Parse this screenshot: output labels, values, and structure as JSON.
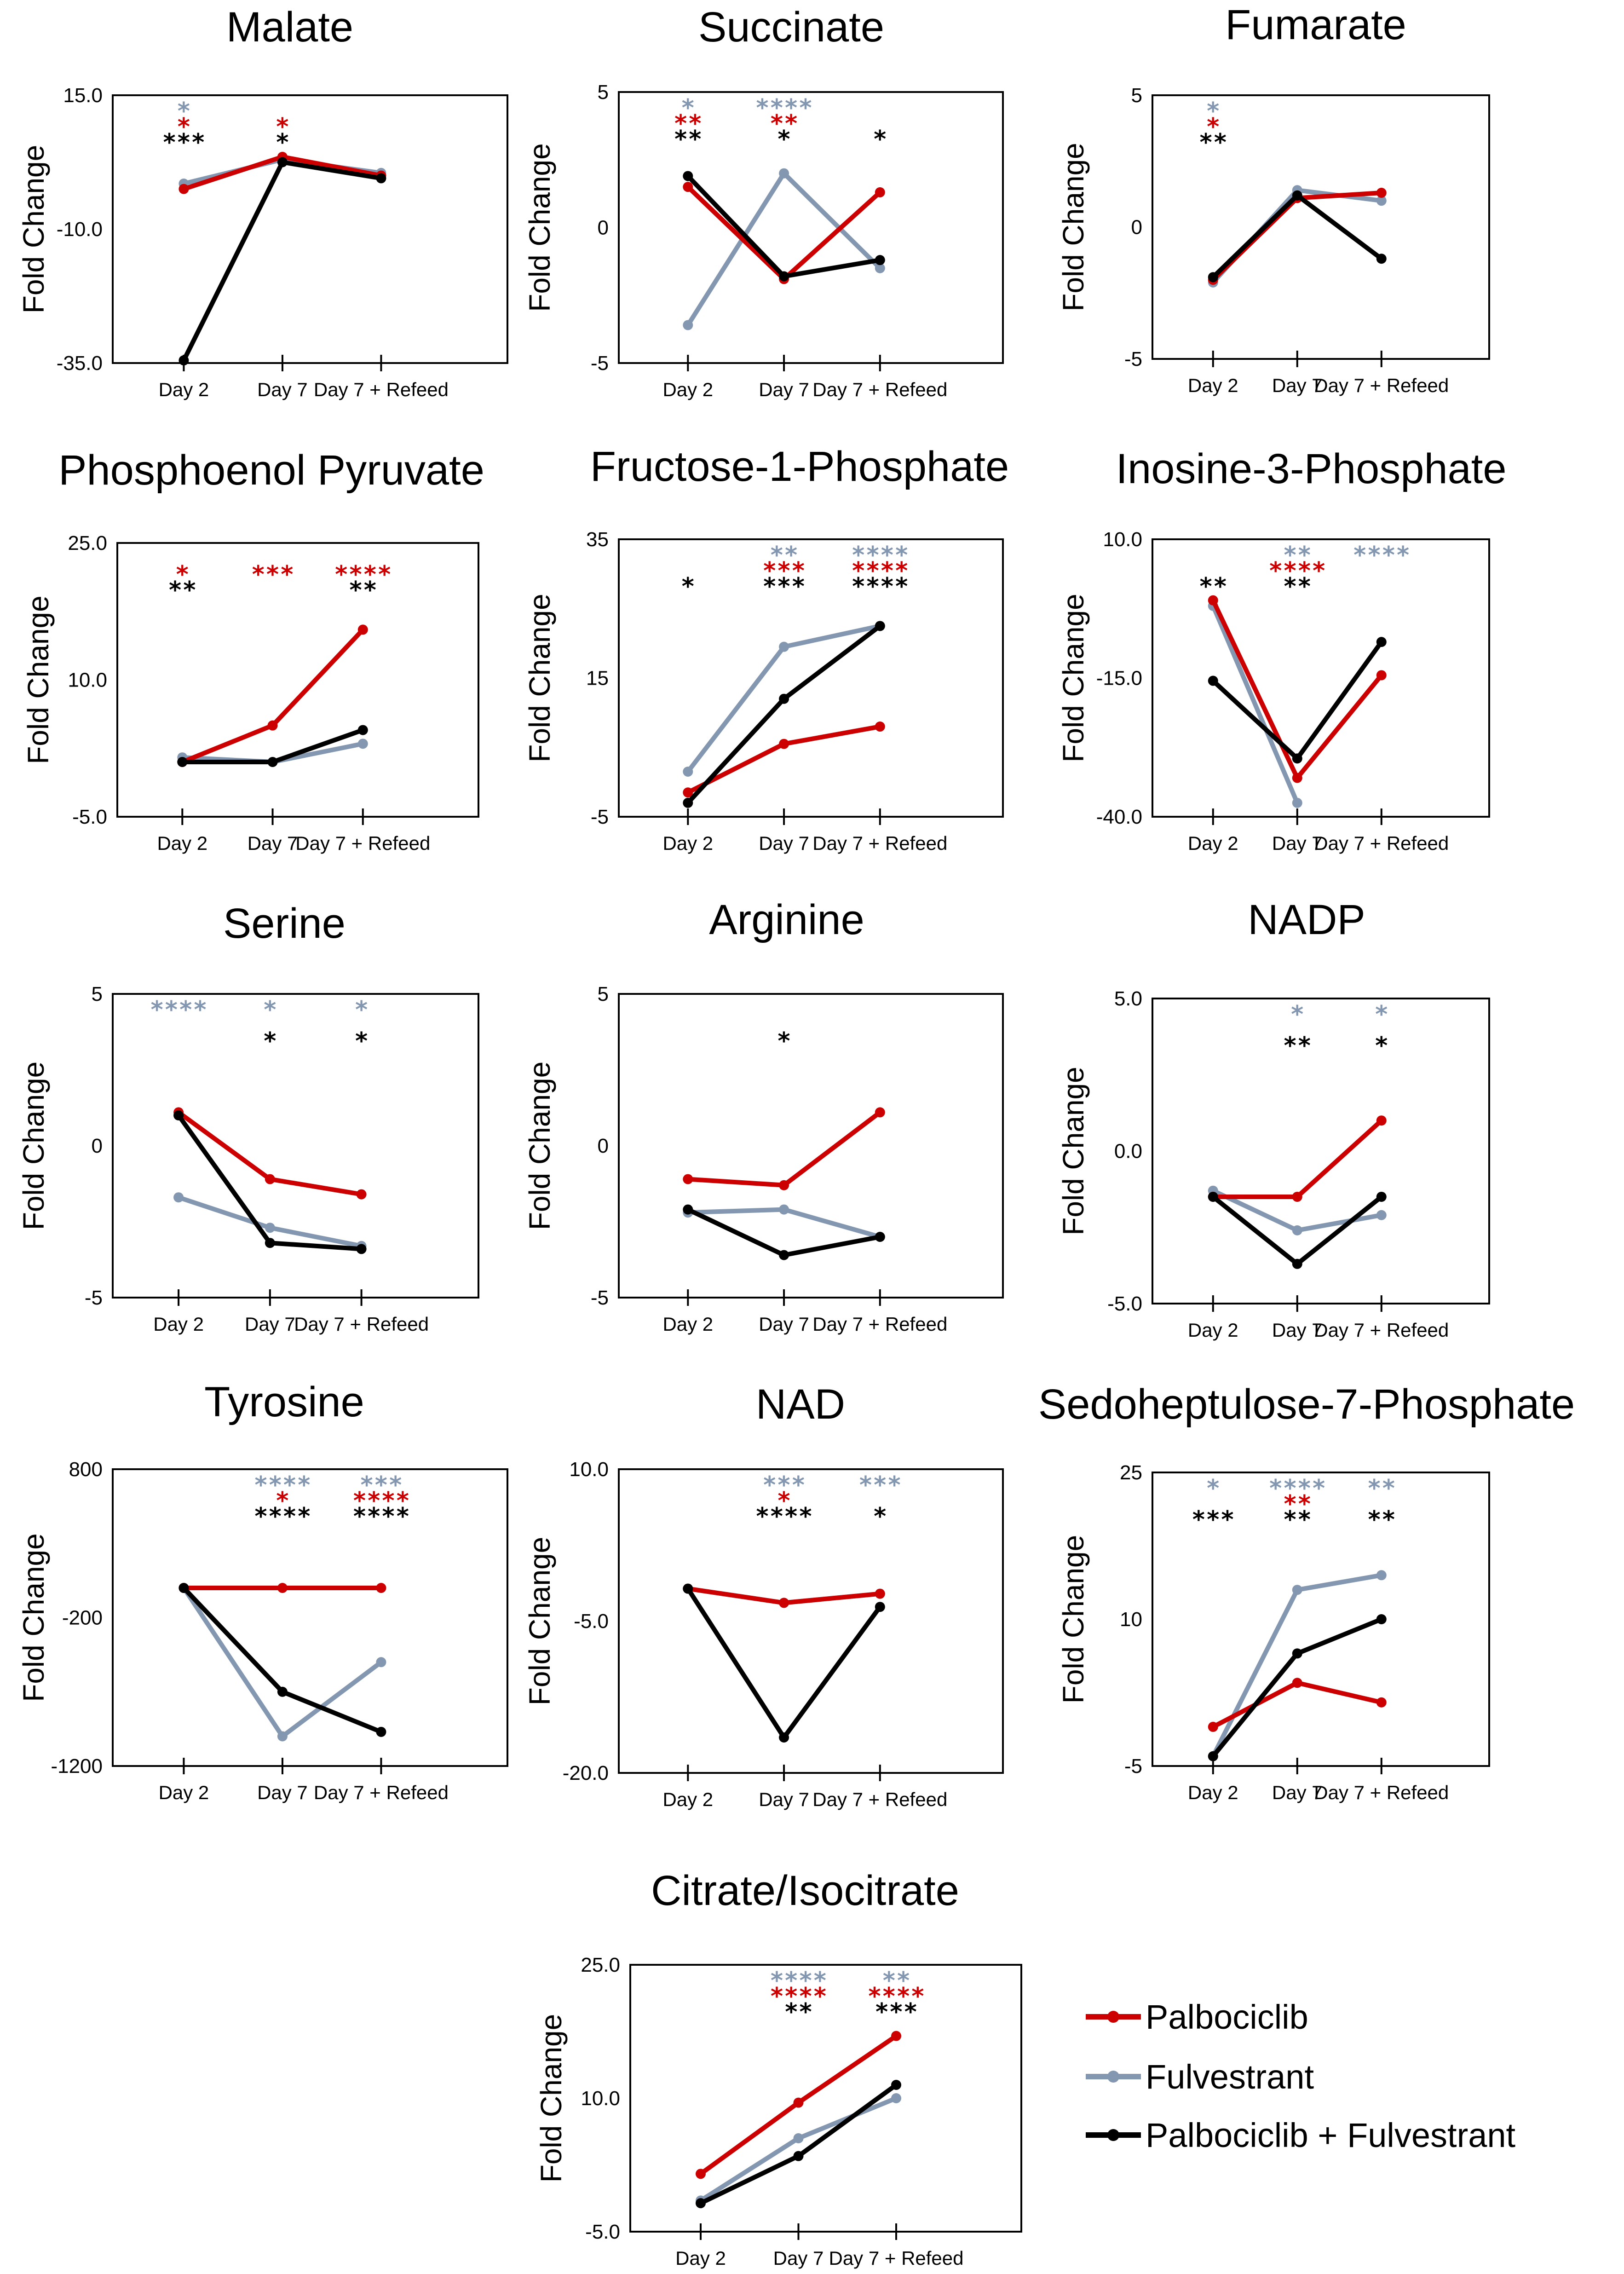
{
  "figure": {
    "categories": [
      "Day 2",
      "Day 7",
      "Day 7 + Refeed"
    ],
    "ylabel": "Fold Change",
    "colors": {
      "Palbociclib": "#cc0000",
      "Fulvestrant": "#8497b0",
      "Palbociclib + Fulvestrant": "#000000"
    },
    "legend": [
      {
        "label": "Palbociclib",
        "color": "#cc0000"
      },
      {
        "label": "Fulvestrant",
        "color": "#8497b0"
      },
      {
        "label": "Palbociclib + Fulvestrant",
        "color": "#000000"
      }
    ]
  },
  "chart_data": [
    {
      "type": "line",
      "title": "Malate",
      "xlabel": "",
      "ylabel": "Fold Change",
      "ylim": [
        -35,
        15
      ],
      "yticks": [
        "15.0",
        "-10.0",
        "-35.0"
      ],
      "categories": [
        "Day 2",
        "Day 7",
        "Day 7 + Refeed"
      ],
      "series": [
        {
          "name": "Palbociclib",
          "values": [
            -2.5,
            3.5,
            0
          ]
        },
        {
          "name": "Fulvestrant",
          "values": [
            -1.5,
            3,
            0.5
          ]
        },
        {
          "name": "Palbociclib + Fulvestrant",
          "values": [
            -34.5,
            2.5,
            -0.5
          ]
        }
      ],
      "significance": [
        {
          "Fulvestrant": "*",
          "Palbociclib": "*",
          "Palbociclib + Fulvestrant": "***"
        },
        {
          "Fulvestrant": "",
          "Palbociclib": "*",
          "Palbociclib + Fulvestrant": "*"
        },
        {
          "Fulvestrant": "",
          "Palbociclib": "",
          "Palbociclib + Fulvestrant": ""
        }
      ]
    },
    {
      "type": "line",
      "title": "Succinate",
      "xlabel": "",
      "ylabel": "Fold Change",
      "ylim": [
        -5,
        5
      ],
      "yticks": [
        "5",
        "0",
        "-5"
      ],
      "categories": [
        "Day 2",
        "Day 7",
        "Day 7 + Refeed"
      ],
      "series": [
        {
          "name": "Palbociclib",
          "values": [
            1.5,
            -1.9,
            1.3
          ]
        },
        {
          "name": "Fulvestrant",
          "values": [
            -3.6,
            2,
            -1.5
          ]
        },
        {
          "name": "Palbociclib + Fulvestrant",
          "values": [
            1.9,
            -1.8,
            -1.2
          ]
        }
      ],
      "significance": [
        {
          "Fulvestrant": "*",
          "Palbociclib": "**",
          "Palbociclib + Fulvestrant": "**"
        },
        {
          "Fulvestrant": "****",
          "Palbociclib": "**",
          "Palbociclib + Fulvestrant": "*"
        },
        {
          "Fulvestrant": "",
          "Palbociclib": "",
          "Palbociclib + Fulvestrant": "*"
        }
      ]
    },
    {
      "type": "line",
      "title": "Fumarate",
      "xlabel": "",
      "ylabel": "Fold Change",
      "ylim": [
        -5,
        5
      ],
      "yticks": [
        "5",
        "0",
        "-5"
      ],
      "categories": [
        "Day 2",
        "Day 7",
        "Day 7 + Refeed"
      ],
      "series": [
        {
          "name": "Palbociclib",
          "values": [
            -2,
            1.1,
            1.3
          ]
        },
        {
          "name": "Fulvestrant",
          "values": [
            -2.1,
            1.4,
            1
          ]
        },
        {
          "name": "Palbociclib + Fulvestrant",
          "values": [
            -1.9,
            1.2,
            -1.2
          ]
        }
      ],
      "significance": [
        {
          "Fulvestrant": "*",
          "Palbociclib": "*",
          "Palbociclib + Fulvestrant": "**"
        },
        {
          "Fulvestrant": "",
          "Palbociclib": "",
          "Palbociclib + Fulvestrant": ""
        },
        {
          "Fulvestrant": "",
          "Palbociclib": "",
          "Palbociclib + Fulvestrant": ""
        }
      ]
    },
    {
      "type": "line",
      "title": "Phosphoenol Pyruvate",
      "xlabel": "",
      "ylabel": "Fold Change",
      "ylim": [
        -5,
        25
      ],
      "yticks": [
        "25.0",
        "10.0",
        "-5.0"
      ],
      "categories": [
        "Day 2",
        "Day 7",
        "Day 7 + Refeed"
      ],
      "series": [
        {
          "name": "Palbociclib",
          "values": [
            1,
            5,
            15.5
          ]
        },
        {
          "name": "Fulvestrant",
          "values": [
            1.5,
            1,
            3
          ]
        },
        {
          "name": "Palbociclib + Fulvestrant",
          "values": [
            1,
            1,
            4.5
          ]
        }
      ],
      "significance": [
        {
          "Fulvestrant": "",
          "Palbociclib": "*",
          "Palbociclib + Fulvestrant": "**"
        },
        {
          "Fulvestrant": "",
          "Palbociclib": "***",
          "Palbociclib + Fulvestrant": ""
        },
        {
          "Fulvestrant": "",
          "Palbociclib": "****",
          "Palbociclib + Fulvestrant": "**"
        }
      ]
    },
    {
      "type": "line",
      "title": "Fructose-1-Phosphate",
      "xlabel": "",
      "ylabel": "Fold Change",
      "ylim": [
        -5,
        35
      ],
      "yticks": [
        "35",
        "15",
        "-5"
      ],
      "categories": [
        "Day 2",
        "Day 7",
        "Day 7 + Refeed"
      ],
      "series": [
        {
          "name": "Palbociclib",
          "values": [
            -1.5,
            5.5,
            8
          ]
        },
        {
          "name": "Fulvestrant",
          "values": [
            1.5,
            19.5,
            22.5
          ]
        },
        {
          "name": "Palbociclib + Fulvestrant",
          "values": [
            -3,
            12,
            22.5
          ]
        }
      ],
      "significance": [
        {
          "Fulvestrant": "",
          "Palbociclib": "",
          "Palbociclib + Fulvestrant": "*"
        },
        {
          "Fulvestrant": "**",
          "Palbociclib": "***",
          "Palbociclib + Fulvestrant": "***"
        },
        {
          "Fulvestrant": "****",
          "Palbociclib": "****",
          "Palbociclib + Fulvestrant": "****"
        }
      ]
    },
    {
      "type": "line",
      "title": "Inosine-3-Phosphate",
      "xlabel": "",
      "ylabel": "Fold Change",
      "ylim": [
        -40,
        10
      ],
      "yticks": [
        "10.0",
        "-15.0",
        "-40.0"
      ],
      "categories": [
        "Day 2",
        "Day 7",
        "Day 7 + Refeed"
      ],
      "series": [
        {
          "name": "Palbociclib",
          "values": [
            -1,
            -33,
            -14.5
          ]
        },
        {
          "name": "Fulvestrant",
          "values": [
            -2,
            -37.5,
            null
          ]
        },
        {
          "name": "Palbociclib + Fulvestrant",
          "values": [
            -15.5,
            -29.5,
            -8.5
          ]
        }
      ],
      "significance": [
        {
          "Fulvestrant": "",
          "Palbociclib": "",
          "Palbociclib + Fulvestrant": "**"
        },
        {
          "Fulvestrant": "**",
          "Palbociclib": "****",
          "Palbociclib + Fulvestrant": "**"
        },
        {
          "Fulvestrant": "****",
          "Palbociclib": "",
          "Palbociclib + Fulvestrant": ""
        }
      ]
    },
    {
      "type": "line",
      "title": "Serine",
      "xlabel": "",
      "ylabel": "Fold Change",
      "ylim": [
        -5,
        5
      ],
      "yticks": [
        "5",
        "0",
        "-5"
      ],
      "categories": [
        "Day 2",
        "Day 7",
        "Day 7 + Refeed"
      ],
      "series": [
        {
          "name": "Palbociclib",
          "values": [
            1.1,
            -1.1,
            -1.6
          ]
        },
        {
          "name": "Fulvestrant",
          "values": [
            -1.7,
            -2.7,
            -3.3
          ]
        },
        {
          "name": "Palbociclib + Fulvestrant",
          "values": [
            1,
            -3.2,
            -3.4
          ]
        }
      ],
      "significance": [
        {
          "Fulvestrant": "****",
          "Palbociclib": "",
          "Palbociclib + Fulvestrant": ""
        },
        {
          "Fulvestrant": "*",
          "Palbociclib": "",
          "Palbociclib + Fulvestrant": "*"
        },
        {
          "Fulvestrant": "*",
          "Palbociclib": "",
          "Palbociclib + Fulvestrant": "*"
        }
      ]
    },
    {
      "type": "line",
      "title": "Arginine",
      "xlabel": "",
      "ylabel": "Fold Change",
      "ylim": [
        -5,
        5
      ],
      "yticks": [
        "5",
        "0",
        "-5"
      ],
      "categories": [
        "Day 2",
        "Day 7",
        "Day 7 + Refeed"
      ],
      "series": [
        {
          "name": "Palbociclib",
          "values": [
            -1.1,
            -1.3,
            1.1
          ]
        },
        {
          "name": "Fulvestrant",
          "values": [
            -2.2,
            -2.1,
            -3
          ]
        },
        {
          "name": "Palbociclib + Fulvestrant",
          "values": [
            -2.1,
            -3.6,
            -3
          ]
        }
      ],
      "significance": [
        {
          "Fulvestrant": "",
          "Palbociclib": "",
          "Palbociclib + Fulvestrant": ""
        },
        {
          "Fulvestrant": "",
          "Palbociclib": "",
          "Palbociclib + Fulvestrant": "*"
        },
        {
          "Fulvestrant": "",
          "Palbociclib": "",
          "Palbociclib + Fulvestrant": ""
        }
      ]
    },
    {
      "type": "line",
      "title": "NADP",
      "xlabel": "",
      "ylabel": "Fold Change",
      "ylim": [
        -5,
        5
      ],
      "yticks": [
        "5.0",
        "0.0",
        "-5.0"
      ],
      "categories": [
        "Day 2",
        "Day 7",
        "Day 7 + Refeed"
      ],
      "series": [
        {
          "name": "Palbociclib",
          "values": [
            -1.5,
            -1.5,
            1
          ]
        },
        {
          "name": "Fulvestrant",
          "values": [
            -1.3,
            -2.6,
            -2.1
          ]
        },
        {
          "name": "Palbociclib + Fulvestrant",
          "values": [
            -1.5,
            -3.7,
            -1.5
          ]
        }
      ],
      "significance": [
        {
          "Fulvestrant": "",
          "Palbociclib": "",
          "Palbociclib + Fulvestrant": ""
        },
        {
          "Fulvestrant": "*",
          "Palbociclib": "",
          "Palbociclib + Fulvestrant": "**"
        },
        {
          "Fulvestrant": "*",
          "Palbociclib": "",
          "Palbociclib + Fulvestrant": "*"
        }
      ]
    },
    {
      "type": "line",
      "title": "Tyrosine",
      "xlabel": "",
      "ylabel": "Fold Change",
      "ylim": [
        -1200,
        800
      ],
      "yticks": [
        "800",
        "-200",
        "-1200"
      ],
      "categories": [
        "Day 2",
        "Day 7",
        "Day 7 + Refeed"
      ],
      "series": [
        {
          "name": "Palbociclib",
          "values": [
            0,
            0,
            0
          ]
        },
        {
          "name": "Fulvestrant",
          "values": [
            0,
            -1000,
            -500
          ]
        },
        {
          "name": "Palbociclib + Fulvestrant",
          "values": [
            0,
            -700,
            -970
          ]
        }
      ],
      "significance": [
        {
          "Fulvestrant": "",
          "Palbociclib": "",
          "Palbociclib + Fulvestrant": ""
        },
        {
          "Fulvestrant": "****",
          "Palbociclib": "*",
          "Palbociclib + Fulvestrant": "****"
        },
        {
          "Fulvestrant": "***",
          "Palbociclib": "****",
          "Palbociclib + Fulvestrant": "****"
        }
      ]
    },
    {
      "type": "line",
      "title": "NAD",
      "xlabel": "",
      "ylabel": "Fold Change",
      "ylim": [
        -20,
        10
      ],
      "yticks": [
        "10.0",
        "-5.0",
        "-20.0"
      ],
      "categories": [
        "Day 2",
        "Day 7",
        "Day 7 + Refeed"
      ],
      "series": [
        {
          "name": "Palbociclib",
          "values": [
            -1.8,
            -3.2,
            -2.3
          ]
        },
        {
          "name": "Fulvestrant",
          "values": [
            -1.8,
            -3.2,
            -2.3
          ]
        },
        {
          "name": "Palbociclib + Fulvestrant",
          "values": [
            -1.8,
            -16.5,
            -3.6
          ]
        }
      ],
      "significance": [
        {
          "Fulvestrant": "",
          "Palbociclib": "",
          "Palbociclib + Fulvestrant": ""
        },
        {
          "Fulvestrant": "***",
          "Palbociclib": "*",
          "Palbociclib + Fulvestrant": "****"
        },
        {
          "Fulvestrant": "***",
          "Palbociclib": "",
          "Palbociclib + Fulvestrant": "*"
        }
      ]
    },
    {
      "type": "line",
      "title": "Sedoheptulose-7-Phosphate",
      "xlabel": "",
      "ylabel": "Fold Change",
      "ylim": [
        -5,
        25
      ],
      "yticks": [
        "25",
        "10",
        "-5"
      ],
      "categories": [
        "Day 2",
        "Day 7",
        "Day 7 + Refeed"
      ],
      "series": [
        {
          "name": "Palbociclib",
          "values": [
            -1,
            3.5,
            1.5
          ]
        },
        {
          "name": "Fulvestrant",
          "values": [
            -4,
            13,
            14.5
          ]
        },
        {
          "name": "Palbociclib + Fulvestrant",
          "values": [
            -4,
            6.5,
            10
          ]
        }
      ],
      "significance": [
        {
          "Fulvestrant": "*",
          "Palbociclib": "",
          "Palbociclib + Fulvestrant": "***"
        },
        {
          "Fulvestrant": "****",
          "Palbociclib": "**",
          "Palbociclib + Fulvestrant": "**"
        },
        {
          "Fulvestrant": "**",
          "Palbociclib": "",
          "Palbociclib + Fulvestrant": "**"
        }
      ]
    },
    {
      "type": "line",
      "title": "Citrate/Isocitrate",
      "xlabel": "",
      "ylabel": "Fold Change",
      "ylim": [
        -5,
        25
      ],
      "yticks": [
        "25.0",
        "10.0",
        "-5.0"
      ],
      "categories": [
        "Day 2",
        "Day 7",
        "Day 7 + Refeed"
      ],
      "series": [
        {
          "name": "Palbociclib",
          "values": [
            1.5,
            9.5,
            17
          ]
        },
        {
          "name": "Fulvestrant",
          "values": [
            -1.5,
            5.5,
            10
          ]
        },
        {
          "name": "Palbociclib + Fulvestrant",
          "values": [
            -1.8,
            3.5,
            11.5
          ]
        }
      ],
      "significance": [
        {
          "Fulvestrant": "",
          "Palbociclib": "",
          "Palbociclib + Fulvestrant": ""
        },
        {
          "Fulvestrant": "****",
          "Palbociclib": "****",
          "Palbociclib + Fulvestrant": "**"
        },
        {
          "Fulvestrant": "**",
          "Palbociclib": "****",
          "Palbociclib + Fulvestrant": "***"
        }
      ]
    }
  ]
}
